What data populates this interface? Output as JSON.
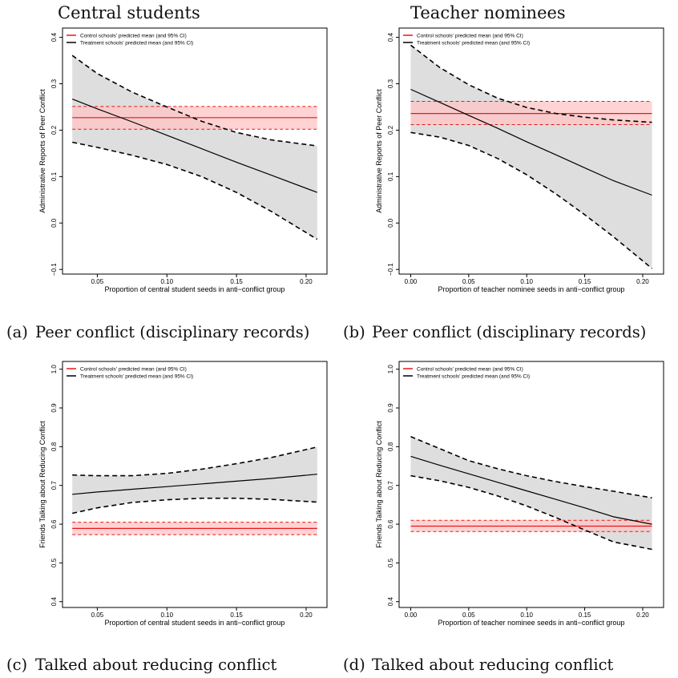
{
  "column_titles": [
    "Central students",
    "Teacher nominees"
  ],
  "captions": [
    {
      "tag": "(a)",
      "text": "Peer conflict (disciplinary records)"
    },
    {
      "tag": "(b)",
      "text": "Peer conflict (disciplinary records)"
    },
    {
      "tag": "(c)",
      "text": "Talked about reducing conflict"
    },
    {
      "tag": "(d)",
      "text": "Talked about reducing conflict"
    }
  ],
  "colors": {
    "control": "#e41a1c",
    "control_band": "#ffc4c4",
    "treatment": "#000000",
    "treatment_band": "#dedede"
  },
  "chart_data": [
    {
      "type": "line",
      "panel": "a",
      "legend": [
        "Control schools' predicted mean (and 95% CI)",
        "Treatment schools' predicted mean (and 95% CI)"
      ],
      "xlabel": "Proportion of central student seeds in anti−conflict group",
      "ylabel": "Administrative Reports of Peer Conflict",
      "xlim": [
        0.025,
        0.215
      ],
      "ylim": [
        -0.11,
        0.42
      ],
      "xticks": [
        0.05,
        0.1,
        0.15,
        0.2
      ],
      "xtick_labels": [
        "0.05",
        "0.10",
        "0.15",
        "0.20"
      ],
      "yticks": [
        -0.1,
        0.0,
        0.1,
        0.2,
        0.3,
        0.4
      ],
      "ytick_labels": [
        "−0.1",
        "0.0",
        "0.1",
        "0.2",
        "0.3",
        "0.4"
      ],
      "x_range": [
        0.032,
        0.208
      ],
      "series": [
        {
          "name": "Control schools' predicted mean (and 95% CI)",
          "x": [
            0.032,
            0.208
          ],
          "mean": [
            0.227,
            0.227
          ],
          "lower": [
            0.202,
            0.202
          ],
          "upper": [
            0.251,
            0.251
          ]
        },
        {
          "name": "Treatment schools' predicted mean (and 95% CI)",
          "x": [
            0.032,
            0.05,
            0.075,
            0.1,
            0.125,
            0.15,
            0.175,
            0.208
          ],
          "mean": [
            0.267,
            0.246,
            0.218,
            0.189,
            0.16,
            0.131,
            0.103,
            0.066
          ],
          "lower": [
            0.174,
            0.163,
            0.146,
            0.126,
            0.1,
            0.066,
            0.025,
            -0.035
          ],
          "upper": [
            0.361,
            0.322,
            0.282,
            0.25,
            0.219,
            0.195,
            0.179,
            0.166
          ]
        }
      ]
    },
    {
      "type": "line",
      "panel": "b",
      "legend": [
        "Control schools' predicted mean (and 95% CI)",
        "Treatment schools' predicted mean (and 95% CI)"
      ],
      "xlabel": "Proportion of teacher nominee seeds in anti−conflict group",
      "ylabel": "Administrative Reports of Peer Conflict",
      "xlim": [
        -0.01,
        0.218
      ],
      "ylim": [
        -0.11,
        0.42
      ],
      "xticks": [
        0.0,
        0.05,
        0.1,
        0.15,
        0.2
      ],
      "xtick_labels": [
        "0.00",
        "0.05",
        "0.10",
        "0.15",
        "0.20"
      ],
      "yticks": [
        -0.1,
        0.0,
        0.1,
        0.2,
        0.3,
        0.4
      ],
      "ytick_labels": [
        "−0.1",
        "0.0",
        "0.1",
        "0.2",
        "0.3",
        "0.4"
      ],
      "x_range": [
        0.0,
        0.208
      ],
      "series": [
        {
          "name": "Control schools' predicted mean (and 95% CI)",
          "x": [
            0.0,
            0.208
          ],
          "mean": [
            0.236,
            0.236
          ],
          "lower": [
            0.212,
            0.212
          ],
          "upper": [
            0.262,
            0.262
          ]
        },
        {
          "name": "Treatment schools' predicted mean (and 95% CI)",
          "x": [
            0.0,
            0.025,
            0.05,
            0.075,
            0.1,
            0.125,
            0.15,
            0.175,
            0.208
          ],
          "mean": [
            0.288,
            0.26,
            0.232,
            0.204,
            0.175,
            0.147,
            0.119,
            0.091,
            0.06
          ],
          "lower": [
            0.195,
            0.185,
            0.167,
            0.139,
            0.104,
            0.063,
            0.018,
            -0.03,
            -0.098
          ],
          "upper": [
            0.383,
            0.335,
            0.298,
            0.269,
            0.249,
            0.236,
            0.228,
            0.222,
            0.217
          ]
        }
      ]
    },
    {
      "type": "line",
      "panel": "c",
      "legend": [
        "Control schools' predicted mean (and 95% CI)",
        "Treatment schools' predicted mean (and 95% CI)"
      ],
      "xlabel": "Proportion of central student seeds in anti−conflict group",
      "ylabel": "Friends Talking about Reducing Conflict",
      "xlim": [
        0.025,
        0.215
      ],
      "ylim": [
        0.385,
        1.02
      ],
      "xticks": [
        0.05,
        0.1,
        0.15,
        0.2
      ],
      "xtick_labels": [
        "0.05",
        "0.10",
        "0.15",
        "0.20"
      ],
      "yticks": [
        0.4,
        0.5,
        0.6,
        0.7,
        0.8,
        0.9,
        1.0
      ],
      "ytick_labels": [
        "0.4",
        "0.5",
        "0.6",
        "0.7",
        "0.8",
        "0.9",
        "1.0"
      ],
      "x_range": [
        0.032,
        0.208
      ],
      "series": [
        {
          "name": "Control schools' predicted mean (and 95% CI)",
          "x": [
            0.032,
            0.208
          ],
          "mean": [
            0.589,
            0.589
          ],
          "lower": [
            0.573,
            0.573
          ],
          "upper": [
            0.605,
            0.605
          ]
        },
        {
          "name": "Treatment schools' predicted mean (and 95% CI)",
          "x": [
            0.032,
            0.05,
            0.075,
            0.1,
            0.125,
            0.15,
            0.175,
            0.208
          ],
          "mean": [
            0.677,
            0.683,
            0.69,
            0.697,
            0.704,
            0.711,
            0.718,
            0.729
          ],
          "lower": [
            0.628,
            0.642,
            0.656,
            0.663,
            0.667,
            0.667,
            0.664,
            0.657
          ],
          "upper": [
            0.727,
            0.725,
            0.725,
            0.731,
            0.742,
            0.756,
            0.772,
            0.799
          ]
        }
      ]
    },
    {
      "type": "line",
      "panel": "d",
      "legend": [
        "Control schools' predicted mean (and 95% CI)",
        "Treatment schools' predicted mean (and 95% CI)"
      ],
      "xlabel": "Proportion of teacher nominee seeds in anti−conflict group",
      "ylabel": "Friends Talking about Reducing Conflict",
      "xlim": [
        -0.01,
        0.218
      ],
      "ylim": [
        0.385,
        1.02
      ],
      "xticks": [
        0.0,
        0.05,
        0.1,
        0.15,
        0.2
      ],
      "xtick_labels": [
        "0.00",
        "0.05",
        "0.10",
        "0.15",
        "0.20"
      ],
      "yticks": [
        0.4,
        0.5,
        0.6,
        0.7,
        0.8,
        0.9,
        1.0
      ],
      "ytick_labels": [
        "0.4",
        "0.5",
        "0.6",
        "0.7",
        "0.8",
        "0.9",
        "1.0"
      ],
      "x_range": [
        0.0,
        0.208
      ],
      "series": [
        {
          "name": "Control schools' predicted mean (and 95% CI)",
          "x": [
            0.0,
            0.208
          ],
          "mean": [
            0.595,
            0.595
          ],
          "lower": [
            0.581,
            0.581
          ],
          "upper": [
            0.61,
            0.61
          ]
        },
        {
          "name": "Treatment schools' predicted mean (and 95% CI)",
          "x": [
            0.0,
            0.025,
            0.05,
            0.075,
            0.1,
            0.125,
            0.15,
            0.175,
            0.208
          ],
          "mean": [
            0.775,
            0.752,
            0.73,
            0.708,
            0.686,
            0.664,
            0.642,
            0.619,
            0.6
          ],
          "lower": [
            0.725,
            0.712,
            0.695,
            0.673,
            0.647,
            0.617,
            0.585,
            0.554,
            0.535
          ],
          "upper": [
            0.826,
            0.795,
            0.764,
            0.743,
            0.725,
            0.71,
            0.697,
            0.685,
            0.668
          ]
        }
      ]
    }
  ]
}
